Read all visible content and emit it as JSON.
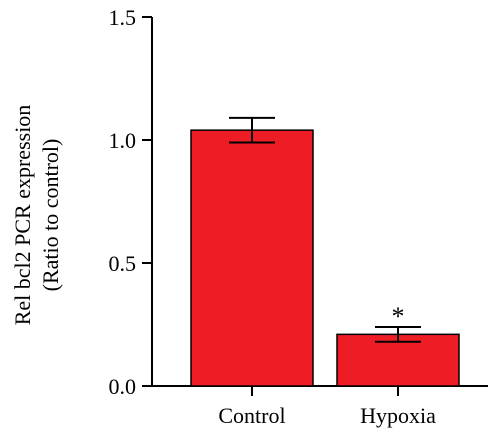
{
  "chart_data": {
    "type": "bar",
    "categories": [
      "Control",
      "Hypoxia"
    ],
    "values": [
      1.04,
      0.21
    ],
    "errors": [
      0.05,
      0.03
    ],
    "annotations": [
      "",
      "*"
    ],
    "ylabel_lines": [
      "Rel bcl2 PCR expression",
      "(Ratio to control)"
    ],
    "ylim": [
      0,
      1.5
    ],
    "yticks": [
      0.0,
      0.5,
      1.0,
      1.5
    ],
    "ytick_labels": [
      "0.0",
      "0.5",
      "1.0",
      "1.5"
    ],
    "bar_color": "#ee1c25",
    "grid": false,
    "legend": "none"
  }
}
